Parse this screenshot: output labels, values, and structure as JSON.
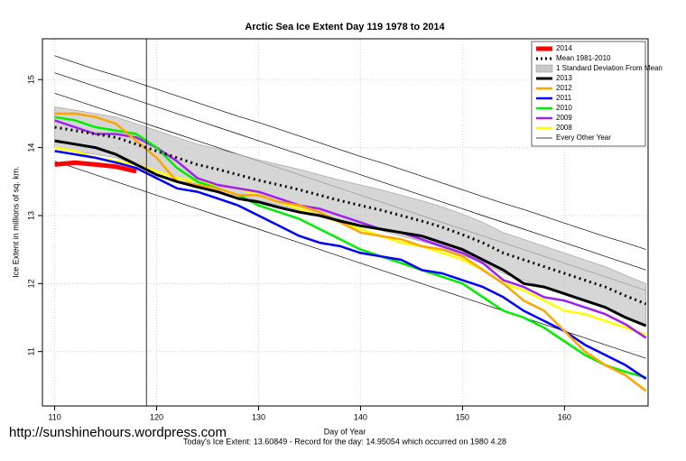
{
  "chart_data": {
    "type": "line",
    "title": "Arctic Sea Ice Extent Day 119 1978 to 2014",
    "xlabel": "Day of Year",
    "ylabel": "Ice Extent in millions of sq. km.",
    "footer": "Today's Ice Extent: 13.60849  - Record for the day: 14.95054 which occurred on 1980 4.28",
    "watermark": "http://sunshinehours.wordpress.com",
    "vline": 119,
    "xlim": [
      108.8,
      168.2
    ],
    "ylim": [
      10.2,
      15.6
    ],
    "xticks": [
      110,
      120,
      130,
      140,
      150,
      160
    ],
    "yticks": [
      11,
      12,
      13,
      14,
      15
    ],
    "grid": true,
    "legend": "top-right",
    "x": [
      110,
      112,
      114,
      116,
      118,
      120,
      122,
      124,
      126,
      128,
      130,
      132,
      134,
      136,
      138,
      140,
      142,
      144,
      146,
      148,
      150,
      152,
      154,
      156,
      158,
      160,
      162,
      164,
      166,
      168
    ],
    "background": {
      "name": "Every Other Year",
      "color": "#000000",
      "lines": [
        [
          15.35,
          15.25,
          15.15,
          15.06,
          14.96,
          14.86,
          14.76,
          14.66,
          14.56,
          14.46,
          14.37,
          14.27,
          14.17,
          14.07,
          13.97,
          13.87,
          13.78,
          13.68,
          13.58,
          13.48,
          13.38,
          13.28,
          13.18,
          13.09,
          12.99,
          12.89,
          12.79,
          12.69,
          12.6,
          12.5
        ],
        [
          15.1,
          15.0,
          14.9,
          14.8,
          14.7,
          14.6,
          14.5,
          14.4,
          14.3,
          14.2,
          14.1,
          14.0,
          13.9,
          13.8,
          13.7,
          13.6,
          13.5,
          13.4,
          13.3,
          13.2,
          13.1,
          13.0,
          12.9,
          12.8,
          12.7,
          12.6,
          12.5,
          12.4,
          12.3,
          12.2
        ],
        [
          14.8,
          14.7,
          14.6,
          14.5,
          14.4,
          14.3,
          14.2,
          14.1,
          14.0,
          13.9,
          13.8,
          13.7,
          13.6,
          13.5,
          13.4,
          13.3,
          13.2,
          13.1,
          13.0,
          12.9,
          12.8,
          12.7,
          12.6,
          12.5,
          12.4,
          12.3,
          12.2,
          12.1,
          12.0,
          11.9
        ],
        [
          13.8,
          13.7,
          13.6,
          13.5,
          13.4,
          13.3,
          13.2,
          13.1,
          13.0,
          12.9,
          12.8,
          12.7,
          12.6,
          12.5,
          12.4,
          12.3,
          12.2,
          12.1,
          12.0,
          11.9,
          11.8,
          11.7,
          11.6,
          11.5,
          11.4,
          11.3,
          11.2,
          11.1,
          11.0,
          10.9
        ]
      ]
    },
    "band": {
      "name": "1 Standard Deviation From Mean",
      "color": "#c8c8c8",
      "upper": [
        14.6,
        14.55,
        14.5,
        14.45,
        14.35,
        14.25,
        14.15,
        14.05,
        13.98,
        13.9,
        13.82,
        13.75,
        13.68,
        13.6,
        13.52,
        13.45,
        13.38,
        13.3,
        13.22,
        13.13,
        13.02,
        12.9,
        12.75,
        12.65,
        12.55,
        12.45,
        12.35,
        12.25,
        12.12,
        12.0
      ],
      "lower": [
        14.0,
        13.95,
        13.9,
        13.85,
        13.75,
        13.65,
        13.55,
        13.45,
        13.38,
        13.3,
        13.22,
        13.15,
        13.08,
        13.0,
        12.92,
        12.85,
        12.78,
        12.7,
        12.62,
        12.53,
        12.42,
        12.3,
        12.15,
        12.05,
        11.95,
        11.85,
        11.75,
        11.65,
        11.52,
        11.4
      ]
    },
    "series": [
      {
        "name": "2014",
        "color": "#ff0000",
        "width": 5,
        "values": [
          13.75,
          13.78,
          13.75,
          13.72,
          13.65,
          null,
          null,
          null,
          null,
          null,
          null,
          null,
          null,
          null,
          null,
          null,
          null,
          null,
          null,
          null,
          null,
          null,
          null,
          null,
          null,
          null,
          null,
          null,
          null,
          null
        ]
      },
      {
        "name": "Mean 1981-2010",
        "color": "#000000",
        "width": 3,
        "dotted": true,
        "values": [
          14.3,
          14.25,
          14.2,
          14.15,
          14.05,
          13.95,
          13.85,
          13.75,
          13.68,
          13.6,
          13.52,
          13.45,
          13.38,
          13.3,
          13.22,
          13.15,
          13.08,
          13.0,
          12.92,
          12.83,
          12.72,
          12.6,
          12.45,
          12.35,
          12.25,
          12.15,
          12.05,
          11.95,
          11.82,
          11.7
        ]
      },
      {
        "name": "2013",
        "color": "#000000",
        "width": 3,
        "values": [
          14.1,
          14.05,
          14.0,
          13.9,
          13.75,
          13.6,
          13.5,
          13.42,
          13.35,
          13.25,
          13.2,
          13.12,
          13.05,
          13.0,
          12.92,
          12.85,
          12.8,
          12.75,
          12.7,
          12.6,
          12.5,
          12.35,
          12.2,
          12.0,
          11.95,
          11.85,
          11.75,
          11.65,
          11.5,
          11.38
        ]
      },
      {
        "name": "2012",
        "color": "#ffa500",
        "width": 2.5,
        "values": [
          14.5,
          14.5,
          14.45,
          14.35,
          14.1,
          13.85,
          13.5,
          13.45,
          13.4,
          13.3,
          13.3,
          13.2,
          13.15,
          13.05,
          12.9,
          12.75,
          12.7,
          12.65,
          12.55,
          12.5,
          12.4,
          12.2,
          12.0,
          11.75,
          11.6,
          11.3,
          11.0,
          10.8,
          10.65,
          10.42
        ]
      },
      {
        "name": "2011",
        "color": "#0000ff",
        "width": 2.5,
        "values": [
          13.95,
          13.9,
          13.85,
          13.78,
          13.7,
          13.55,
          13.4,
          13.35,
          13.25,
          13.15,
          13.0,
          12.85,
          12.7,
          12.6,
          12.55,
          12.45,
          12.4,
          12.35,
          12.2,
          12.15,
          12.05,
          11.95,
          11.8,
          11.6,
          11.45,
          11.3,
          11.1,
          10.95,
          10.8,
          10.6
        ]
      },
      {
        "name": "2010",
        "color": "#00ee00",
        "width": 2.5,
        "values": [
          14.45,
          14.4,
          14.3,
          14.25,
          14.2,
          14.0,
          13.7,
          13.5,
          13.4,
          13.3,
          13.15,
          13.05,
          12.95,
          12.8,
          12.65,
          12.5,
          12.4,
          12.3,
          12.2,
          12.1,
          12.0,
          11.8,
          11.6,
          11.5,
          11.35,
          11.15,
          10.95,
          10.8,
          10.7,
          10.62
        ]
      },
      {
        "name": "2009",
        "color": "#a020f0",
        "width": 2.5,
        "values": [
          14.4,
          14.3,
          14.2,
          14.2,
          14.15,
          14.0,
          13.8,
          13.55,
          13.45,
          13.4,
          13.35,
          13.25,
          13.15,
          13.1,
          13.0,
          12.9,
          12.8,
          12.75,
          12.65,
          12.55,
          12.45,
          12.3,
          12.05,
          11.95,
          11.8,
          11.75,
          11.65,
          11.55,
          11.4,
          11.2
        ]
      },
      {
        "name": "2008",
        "color": "#ffff00",
        "width": 2.5,
        "values": [
          14.0,
          13.95,
          13.85,
          13.8,
          13.75,
          13.65,
          13.55,
          13.5,
          13.45,
          13.4,
          13.3,
          13.2,
          13.1,
          13.0,
          12.9,
          12.8,
          12.7,
          12.6,
          12.55,
          12.45,
          12.35,
          12.2,
          12.0,
          11.9,
          11.75,
          11.6,
          11.55,
          11.45,
          11.35,
          11.25
        ]
      }
    ]
  }
}
